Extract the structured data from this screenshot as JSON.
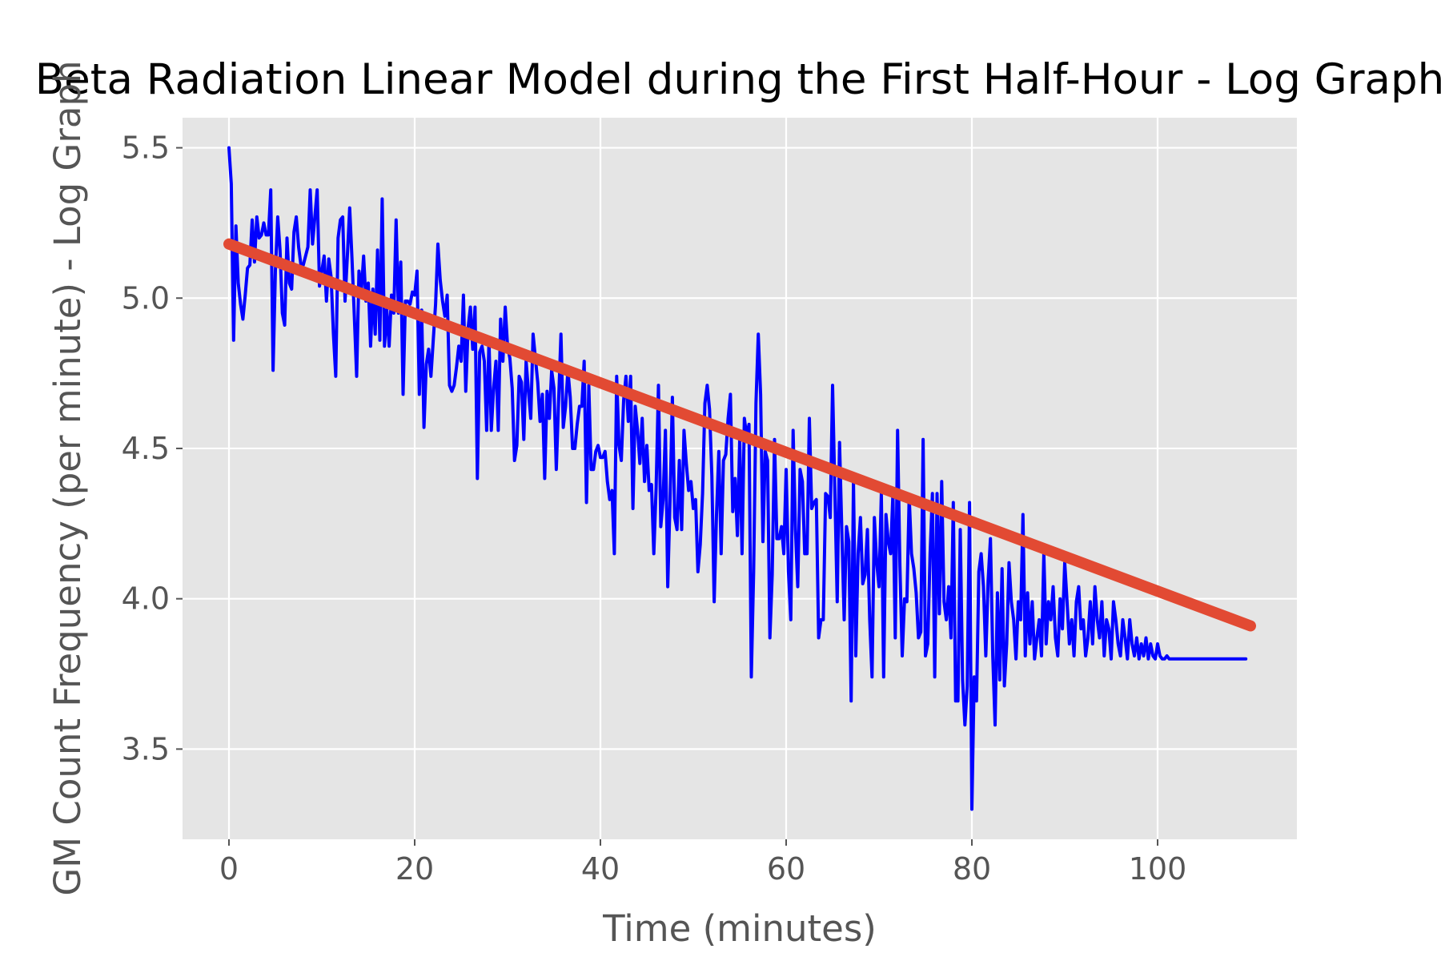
{
  "chart_data": {
    "type": "line",
    "title": "Beta Radiation Linear Model during the First Half-Hour - Log Graph",
    "xlabel": "Time (minutes)",
    "ylabel": "GM Count Frequency (per minute) - Log Graph",
    "xlim": [
      -5,
      115
    ],
    "ylim": [
      3.2,
      5.6
    ],
    "xticks": [
      0,
      20,
      40,
      60,
      80,
      100
    ],
    "xtick_labels": [
      "0",
      "20",
      "40",
      "60",
      "80",
      "100"
    ],
    "yticks": [
      3.5,
      4.0,
      4.5,
      5.0,
      5.5
    ],
    "ytick_labels": [
      "3.5",
      "4.0",
      "4.5",
      "5.0",
      "5.5"
    ],
    "grid": true,
    "background": "#e5e5e5",
    "series": [
      {
        "color": "#0000ff",
        "x": [
          0.0,
          0.25,
          0.5,
          0.75,
          1.0,
          1.25,
          1.5,
          1.75,
          2.0,
          2.25,
          2.5,
          2.75,
          3.0,
          3.25,
          3.5,
          3.75,
          4.0,
          4.25,
          4.5,
          4.75,
          5.0,
          5.25,
          5.5,
          5.75,
          6.0,
          6.25,
          6.5,
          6.75,
          7.0,
          7.25,
          7.5,
          7.75,
          8.0,
          8.25,
          8.5,
          8.75,
          9.0,
          9.25,
          9.5,
          9.75,
          10.0,
          10.25,
          10.5,
          10.75,
          11.0,
          11.25,
          11.5,
          11.75,
          12.0,
          12.25,
          12.5,
          12.75,
          13.0,
          13.25,
          13.5,
          13.75,
          14.0,
          14.25,
          14.5,
          14.75,
          15.0,
          15.25,
          15.5,
          15.75,
          16.0,
          16.25,
          16.5,
          16.75,
          17.0,
          17.25,
          17.5,
          17.75,
          18.0,
          18.25,
          18.5,
          18.75,
          19.0,
          19.25,
          19.5,
          19.75,
          20.0,
          20.25,
          20.5,
          20.75,
          21.0,
          21.25,
          21.5,
          21.75,
          22.0,
          22.25,
          22.5,
          22.75,
          23.0,
          23.25,
          23.5,
          23.75,
          24.0,
          24.25,
          24.5,
          24.75,
          25.0,
          25.25,
          25.5,
          25.75,
          26.0,
          26.25,
          26.5,
          26.75,
          27.0,
          27.25,
          27.5,
          27.75,
          28.0,
          28.25,
          28.5,
          28.75,
          29.0,
          29.25,
          29.5,
          29.75,
          30.0,
          30.25,
          30.5,
          30.75,
          31.0,
          31.25,
          31.5,
          31.75,
          32.0,
          32.25,
          32.5,
          32.75,
          33.0,
          33.25,
          33.5,
          33.75,
          34.0,
          34.25,
          34.5,
          34.75,
          35.0,
          35.25,
          35.5,
          35.75,
          36.0,
          36.25,
          36.5,
          36.75,
          37.0,
          37.25,
          37.5,
          37.75,
          38.0,
          38.25,
          38.5,
          38.75,
          39.0,
          39.25,
          39.5,
          39.75,
          40.0,
          40.25,
          40.5,
          40.75,
          41.0,
          41.25,
          41.5,
          41.75,
          42.0,
          42.25,
          42.5,
          42.75,
          43.0,
          43.25,
          43.5,
          43.75,
          44.0,
          44.25,
          44.5,
          44.75,
          45.0,
          45.25,
          45.5,
          45.75,
          46.0,
          46.25,
          46.5,
          46.75,
          47.0,
          47.25,
          47.5,
          47.75,
          48.0,
          48.25,
          48.5,
          48.75,
          49.0,
          49.25,
          49.5,
          49.75,
          50.0,
          50.25,
          50.5,
          50.75,
          51.0,
          51.25,
          51.5,
          51.75,
          52.0,
          52.25,
          52.5,
          52.75,
          53.0,
          53.25,
          53.5,
          53.75,
          54.0,
          54.25,
          54.5,
          54.75,
          55.0,
          55.25,
          55.5,
          55.75,
          56.0,
          56.25,
          56.5,
          56.75,
          57.0,
          57.25,
          57.5,
          57.75,
          58.0,
          58.25,
          58.5,
          58.75,
          59.0,
          59.25,
          59.5,
          59.75,
          60.0,
          60.25,
          60.5,
          60.75,
          61.0,
          61.25,
          61.5,
          61.75,
          62.0,
          62.25,
          62.5,
          62.75,
          63.0,
          63.25,
          63.5,
          63.75,
          64.0,
          64.25,
          64.5,
          64.75,
          65.0,
          65.25,
          65.5,
          65.75,
          66.0,
          66.25,
          66.5,
          66.75,
          67.0,
          67.25,
          67.5,
          67.75,
          68.0,
          68.25,
          68.5,
          68.75,
          69.0,
          69.25,
          69.5,
          69.75,
          70.0,
          70.25,
          70.5,
          70.75,
          71.0,
          71.25,
          71.5,
          71.75,
          72.0,
          72.25,
          72.5,
          72.75,
          73.0,
          73.25,
          73.5,
          73.75,
          74.0,
          74.25,
          74.5,
          74.75,
          75.0,
          75.25,
          75.5,
          75.75,
          76.0,
          76.25,
          76.5,
          76.75,
          77.0,
          77.25,
          77.5,
          77.75,
          78.0,
          78.25,
          78.5,
          78.75,
          79.0,
          79.25,
          79.5,
          79.75,
          80.0,
          80.25,
          80.5,
          80.75,
          81.0,
          81.25,
          81.5,
          81.75,
          82.0,
          82.25,
          82.5,
          82.75,
          83.0,
          83.25,
          83.5,
          83.75,
          84.0,
          84.25,
          84.5,
          84.75,
          85.0,
          85.25,
          85.5,
          85.75,
          86.0,
          86.25,
          86.5,
          86.75,
          87.0,
          87.25,
          87.5,
          87.75,
          88.0,
          88.25,
          88.5,
          88.75,
          89.0,
          89.25,
          89.5,
          89.75,
          90.0,
          90.25,
          90.5,
          90.75,
          91.0,
          91.25,
          91.5,
          91.75,
          92.0,
          92.25,
          92.5,
          92.75,
          93.0,
          93.25,
          93.5,
          93.75,
          94.0,
          94.25,
          94.5,
          94.75,
          95.0,
          95.25,
          95.5,
          95.75,
          96.0,
          96.25,
          96.5,
          96.75,
          97.0,
          97.25,
          97.5,
          97.75,
          98.0,
          98.25,
          98.5,
          98.75,
          99.0,
          99.25,
          99.5,
          99.75,
          100.0,
          100.25,
          100.5,
          100.75,
          101.0,
          101.25,
          101.5,
          101.75,
          102.0,
          102.25,
          102.5,
          102.75,
          103.0,
          103.25,
          103.5,
          103.75,
          104.0,
          104.25,
          104.5,
          104.75,
          105.0,
          105.25,
          105.5,
          105.75,
          106.0,
          106.25,
          106.5,
          106.75,
          107.0,
          107.25,
          107.5,
          107.75,
          108.0,
          108.25,
          108.5,
          108.75,
          109.0,
          109.25,
          109.5
        ],
        "y": [
          5.5,
          5.38,
          4.86,
          5.24,
          5.05,
          4.98,
          4.93,
          5.01,
          5.1,
          5.11,
          5.26,
          5.12,
          5.27,
          5.2,
          5.21,
          5.25,
          5.21,
          5.21,
          5.36,
          4.76,
          5.09,
          5.27,
          5.16,
          4.95,
          4.91,
          5.2,
          5.05,
          5.03,
          5.22,
          5.27,
          5.17,
          5.11,
          5.11,
          5.14,
          5.17,
          5.36,
          5.18,
          5.27,
          5.36,
          5.04,
          5.09,
          5.14,
          4.99,
          5.13,
          5.07,
          4.88,
          4.74,
          5.2,
          5.26,
          5.27,
          4.99,
          5.14,
          5.3,
          5.13,
          4.94,
          4.74,
          5.09,
          5.02,
          5.14,
          4.99,
          5.05,
          4.84,
          5.03,
          4.88,
          5.16,
          4.86,
          5.33,
          4.84,
          4.96,
          4.84,
          5.01,
          4.95,
          5.26,
          4.95,
          5.12,
          4.68,
          4.99,
          4.99,
          4.98,
          5.02,
          5.01,
          5.09,
          4.68,
          4.96,
          4.57,
          4.78,
          4.83,
          4.74,
          4.86,
          4.98,
          5.18,
          5.06,
          4.99,
          4.94,
          5.01,
          4.71,
          4.69,
          4.71,
          4.77,
          4.84,
          4.79,
          5.01,
          4.69,
          4.9,
          4.97,
          4.83,
          4.97,
          4.4,
          4.82,
          4.84,
          4.79,
          4.56,
          4.86,
          4.56,
          4.7,
          4.79,
          4.56,
          4.93,
          4.79,
          4.97,
          4.84,
          4.8,
          4.7,
          4.46,
          4.51,
          4.74,
          4.72,
          4.53,
          4.79,
          4.69,
          4.6,
          4.88,
          4.8,
          4.72,
          4.59,
          4.68,
          4.4,
          4.69,
          4.6,
          4.76,
          4.7,
          4.43,
          4.66,
          4.88,
          4.57,
          4.64,
          4.76,
          4.67,
          4.5,
          4.5,
          4.58,
          4.64,
          4.64,
          4.79,
          4.32,
          4.71,
          4.43,
          4.43,
          4.49,
          4.51,
          4.47,
          4.47,
          4.49,
          4.39,
          4.33,
          4.36,
          4.15,
          4.74,
          4.51,
          4.46,
          4.66,
          4.74,
          4.59,
          4.74,
          4.3,
          4.64,
          4.56,
          4.45,
          4.6,
          4.39,
          4.51,
          4.36,
          4.38,
          4.15,
          4.37,
          4.71,
          4.24,
          4.33,
          4.56,
          4.04,
          4.33,
          4.67,
          4.27,
          4.23,
          4.46,
          4.23,
          4.56,
          4.45,
          4.36,
          4.39,
          4.3,
          4.33,
          4.09,
          4.18,
          4.35,
          4.65,
          4.71,
          4.63,
          4.41,
          3.99,
          4.28,
          4.49,
          4.15,
          4.46,
          4.48,
          4.6,
          4.68,
          4.29,
          4.4,
          4.21,
          4.53,
          4.15,
          4.6,
          4.54,
          4.58,
          3.74,
          4.09,
          4.65,
          4.88,
          4.68,
          4.19,
          4.49,
          4.46,
          3.87,
          4.08,
          4.53,
          4.2,
          4.2,
          4.24,
          4.15,
          4.43,
          4.09,
          3.93,
          4.56,
          4.23,
          4.04,
          4.43,
          4.39,
          4.15,
          4.15,
          4.6,
          4.3,
          4.32,
          4.33,
          3.87,
          3.93,
          3.93,
          4.35,
          4.34,
          4.27,
          4.71,
          4.35,
          3.99,
          4.52,
          4.22,
          3.93,
          4.24,
          4.19,
          3.66,
          4.39,
          3.81,
          4.15,
          4.27,
          4.05,
          4.08,
          4.23,
          3.93,
          3.74,
          4.27,
          4.12,
          4.04,
          4.35,
          3.74,
          4.28,
          4.19,
          4.15,
          4.35,
          3.87,
          4.56,
          4.11,
          3.81,
          4.0,
          3.99,
          4.34,
          4.15,
          4.1,
          4.02,
          3.87,
          3.89,
          4.53,
          3.81,
          3.85,
          4.15,
          4.35,
          3.74,
          4.35,
          3.95,
          4.39,
          3.99,
          3.93,
          4.04,
          3.87,
          4.32,
          3.66,
          3.66,
          4.23,
          3.73,
          3.58,
          3.71,
          4.32,
          3.3,
          3.74,
          3.66,
          4.09,
          4.15,
          4.04,
          3.81,
          4.06,
          4.2,
          3.81,
          3.58,
          4.02,
          3.73,
          4.1,
          3.71,
          3.85,
          4.12,
          3.99,
          3.93,
          3.8,
          3.99,
          3.93,
          4.28,
          3.81,
          4.02,
          3.85,
          3.99,
          3.8,
          3.87,
          3.93,
          3.81,
          4.15,
          3.85,
          3.99,
          3.93,
          4.04,
          3.87,
          3.81,
          4.0,
          3.9,
          4.12,
          3.99,
          3.85,
          3.93,
          3.81,
          3.99,
          4.04,
          3.9,
          3.93,
          3.81,
          3.87,
          3.99,
          3.85,
          4.04,
          3.93,
          3.87,
          3.99,
          3.81,
          3.93,
          3.9,
          3.8,
          3.99,
          3.93,
          3.85,
          3.81,
          3.93,
          3.87,
          3.8,
          3.93,
          3.85,
          3.81,
          3.87,
          3.8,
          3.85,
          3.81,
          3.87,
          3.8,
          3.85,
          3.81,
          3.8,
          3.85,
          3.81,
          3.8,
          3.8,
          3.81,
          3.8,
          3.8,
          3.8,
          3.8,
          3.8,
          3.8,
          3.8,
          3.8,
          3.8,
          3.8,
          3.8,
          3.8,
          3.8,
          3.8,
          3.8,
          3.8,
          3.8,
          3.8,
          3.8,
          3.8,
          3.8,
          3.8,
          3.8,
          3.8,
          3.8,
          3.8,
          3.8,
          3.8,
          3.8,
          3.8,
          3.8,
          3.8,
          3.8,
          3.8
        ]
      },
      {
        "color": "#e24a33",
        "x": [
          0,
          110
        ],
        "y": [
          5.18,
          3.91
        ]
      }
    ]
  }
}
